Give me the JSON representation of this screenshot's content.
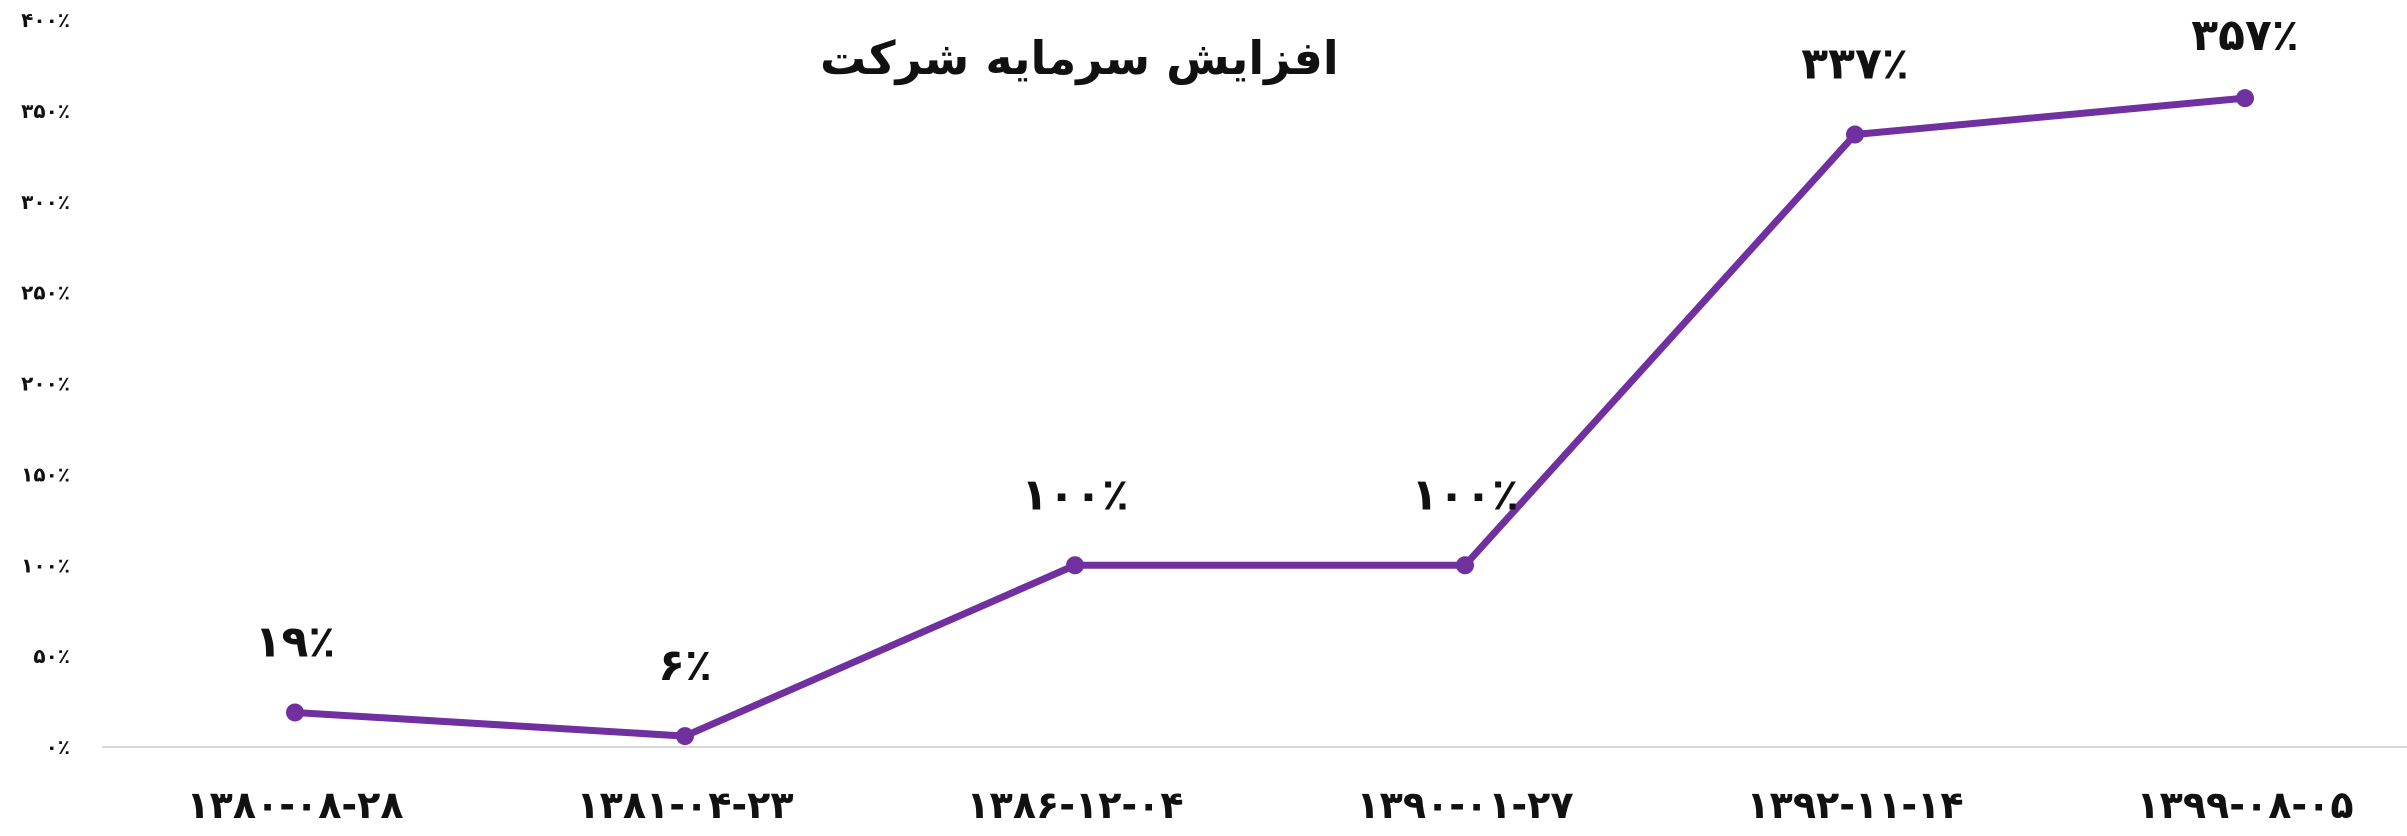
{
  "chart_data": {
    "type": "line",
    "title": "افزایش سرمایه شرکت",
    "categories": [
      "۱۳۸۰-۰۸-۲۸",
      "۱۳۸۱-۰۴-۲۳",
      "۱۳۸۶-۱۲-۰۴",
      "۱۳۹۰-۰۱-۲۷",
      "۱۳۹۲-۱۱-۱۴",
      "۱۳۹۹-۰۸-۰۵"
    ],
    "values": [
      19,
      6,
      100,
      100,
      337,
      357
    ],
    "data_labels": [
      "۱۹٪",
      "۶٪",
      "۱۰۰٪",
      "۱۰۰٪",
      "۳۳۷٪",
      "۳۵۷٪"
    ],
    "ylim": [
      0,
      400
    ],
    "yticks": [
      0,
      50,
      100,
      150,
      200,
      250,
      300,
      350,
      400
    ],
    "ytick_labels": [
      "۰٪",
      "۵۰٪",
      "۱۰۰٪",
      "۱۵۰٪",
      "۲۰۰٪",
      "۲۵۰٪",
      "۳۰۰٪",
      "۳۵۰٪",
      "۴۰۰٪"
    ],
    "xlabel": "",
    "ylabel": "",
    "grid": false,
    "legend": "none",
    "colors": {
      "line": "#7030a0",
      "axis": "#d9d9d9"
    }
  }
}
